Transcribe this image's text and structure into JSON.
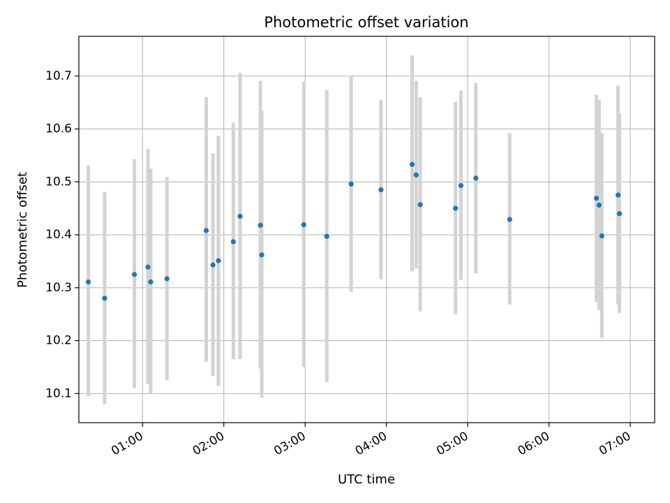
{
  "chart_data": {
    "type": "scatter",
    "title": "Photometric offset variation",
    "xlabel": "UTC time",
    "ylabel": "Photometric offset",
    "x_ticks": [
      "01:00",
      "02:00",
      "03:00",
      "04:00",
      "05:00",
      "06:00",
      "07:00"
    ],
    "y_ticks": [
      "10.1",
      "10.2",
      "10.3",
      "10.4",
      "10.5",
      "10.6",
      "10.7"
    ],
    "xlim": [
      "00:13",
      "07:18"
    ],
    "ylim": [
      10.045,
      10.775
    ],
    "grid": true,
    "colors": {
      "marker": "#1f77b4",
      "errorbar": "#d3d3d3",
      "grid": "#b0b0b0"
    },
    "series": [
      {
        "points": [
          {
            "x": "00:20",
            "y": 10.311,
            "ylo": 10.095,
            "yhi": 10.531
          },
          {
            "x": "00:32",
            "y": 10.28,
            "ylo": 10.08,
            "yhi": 10.481
          },
          {
            "x": "00:54",
            "y": 10.325,
            "ylo": 10.11,
            "yhi": 10.543
          },
          {
            "x": "01:04",
            "y": 10.339,
            "ylo": 10.118,
            "yhi": 10.562
          },
          {
            "x": "01:06",
            "y": 10.311,
            "ylo": 10.1,
            "yhi": 10.525
          },
          {
            "x": "01:18",
            "y": 10.317,
            "ylo": 10.125,
            "yhi": 10.509
          },
          {
            "x": "01:47",
            "y": 10.408,
            "ylo": 10.16,
            "yhi": 10.66
          },
          {
            "x": "01:52",
            "y": 10.343,
            "ylo": 10.133,
            "yhi": 10.554
          },
          {
            "x": "01:56",
            "y": 10.351,
            "ylo": 10.115,
            "yhi": 10.587
          },
          {
            "x": "02:07",
            "y": 10.387,
            "ylo": 10.165,
            "yhi": 10.612
          },
          {
            "x": "02:12",
            "y": 10.435,
            "ylo": 10.165,
            "yhi": 10.706
          },
          {
            "x": "02:27",
            "y": 10.418,
            "ylo": 10.147,
            "yhi": 10.691
          },
          {
            "x": "02:28",
            "y": 10.362,
            "ylo": 10.092,
            "yhi": 10.634
          },
          {
            "x": "02:59",
            "y": 10.419,
            "ylo": 10.15,
            "yhi": 10.689
          },
          {
            "x": "03:16",
            "y": 10.397,
            "ylo": 10.122,
            "yhi": 10.673
          },
          {
            "x": "03:34",
            "y": 10.496,
            "ylo": 10.292,
            "yhi": 10.7
          },
          {
            "x": "03:56",
            "y": 10.485,
            "ylo": 10.316,
            "yhi": 10.655
          },
          {
            "x": "04:19",
            "y": 10.533,
            "ylo": 10.331,
            "yhi": 10.739
          },
          {
            "x": "04:22",
            "y": 10.513,
            "ylo": 10.336,
            "yhi": 10.691
          },
          {
            "x": "04:25",
            "y": 10.457,
            "ylo": 10.255,
            "yhi": 10.66
          },
          {
            "x": "04:51",
            "y": 10.45,
            "ylo": 10.25,
            "yhi": 10.651
          },
          {
            "x": "04:55",
            "y": 10.493,
            "ylo": 10.315,
            "yhi": 10.672
          },
          {
            "x": "05:06",
            "y": 10.507,
            "ylo": 10.327,
            "yhi": 10.687
          },
          {
            "x": "05:31",
            "y": 10.429,
            "ylo": 10.268,
            "yhi": 10.592
          },
          {
            "x": "06:35",
            "y": 10.469,
            "ylo": 10.273,
            "yhi": 10.665
          },
          {
            "x": "06:37",
            "y": 10.456,
            "ylo": 10.258,
            "yhi": 10.655
          },
          {
            "x": "06:39",
            "y": 10.398,
            "ylo": 10.205,
            "yhi": 10.592
          },
          {
            "x": "06:51",
            "y": 10.475,
            "ylo": 10.268,
            "yhi": 10.682
          },
          {
            "x": "06:52",
            "y": 10.44,
            "ylo": 10.252,
            "yhi": 10.63
          }
        ]
      }
    ]
  }
}
